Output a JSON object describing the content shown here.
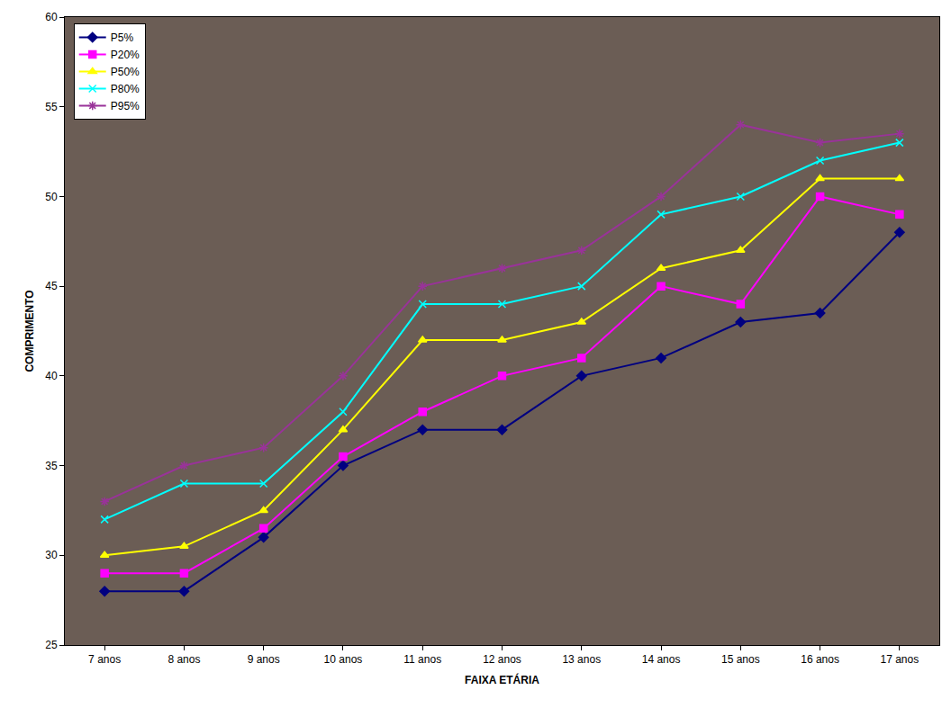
{
  "chart_data": {
    "type": "line",
    "x_label": "FAIXA ETÁRIA",
    "y_label": "COMPRIMENTO",
    "categories": [
      "7 anos",
      "8 anos",
      "9 anos",
      "10 anos",
      "11 anos",
      "12 anos",
      "13 anos",
      "14 anos",
      "15 anos",
      "16 anos",
      "17 anos"
    ],
    "series": [
      {
        "name": "P5%",
        "color": "#000080",
        "marker": "diamond",
        "values": [
          28,
          28,
          31,
          35,
          37,
          37,
          40,
          41,
          43,
          43.5,
          48
        ]
      },
      {
        "name": "P20%",
        "color": "#ff00ff",
        "marker": "square",
        "values": [
          29,
          29,
          31.5,
          35.5,
          38,
          40,
          41,
          45,
          44,
          50,
          49
        ]
      },
      {
        "name": "P50%",
        "color": "#ffff00",
        "marker": "triangle-up",
        "values": [
          30,
          30.5,
          32.5,
          37,
          42,
          42,
          43,
          46,
          47,
          51,
          51
        ]
      },
      {
        "name": "P80%",
        "color": "#00ffff",
        "marker": "x",
        "values": [
          32,
          34,
          34,
          38,
          44,
          44,
          45,
          49,
          50,
          52,
          53
        ]
      },
      {
        "name": "P95%",
        "color": "#993399",
        "marker": "asterisk",
        "values": [
          33,
          35,
          36,
          40,
          45,
          46,
          47,
          50,
          54,
          53,
          53.5
        ]
      }
    ],
    "ylim": [
      25,
      60
    ],
    "yticks": [
      25,
      30,
      35,
      40,
      45,
      50,
      55,
      60
    ],
    "grid": false,
    "legend": "top-left"
  }
}
